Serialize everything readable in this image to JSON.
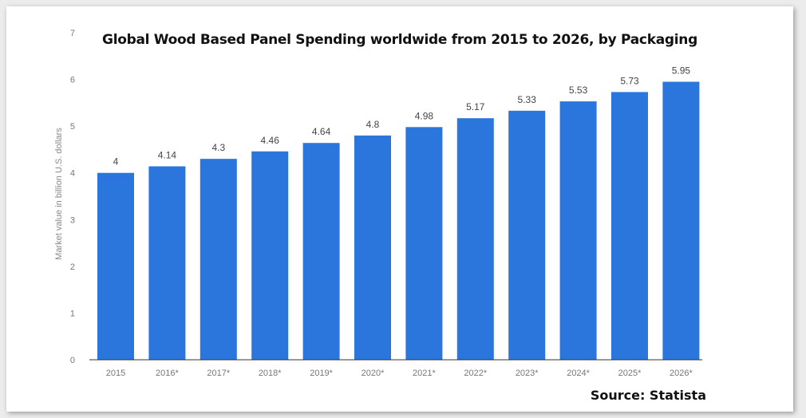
{
  "chart_data": {
    "type": "bar",
    "title": "Global Wood Based Panel Spending worldwide from 2015 to 2026, by Packaging",
    "ylabel": "Market value in billion U.S. dollars",
    "xlabel": "",
    "categories": [
      "2015",
      "2016*",
      "2017*",
      "2018*",
      "2019*",
      "2020*",
      "2021*",
      "2022*",
      "2023*",
      "2024*",
      "2025*",
      "2026*"
    ],
    "values": [
      4,
      4.14,
      4.3,
      4.46,
      4.64,
      4.8,
      4.98,
      5.17,
      5.33,
      5.53,
      5.73,
      5.95
    ],
    "value_labels": [
      "4",
      "4.14",
      "4.3",
      "4.46",
      "4.64",
      "4.8",
      "4.98",
      "5.17",
      "5.33",
      "5.53",
      "5.73",
      "5.95"
    ],
    "yticks": [
      "0",
      "1",
      "2",
      "3",
      "4",
      "5",
      "6",
      "7"
    ],
    "ylim": [
      0,
      7
    ],
    "grid": false,
    "bar_color": "#2a76dd"
  },
  "source": "Source: Statista"
}
